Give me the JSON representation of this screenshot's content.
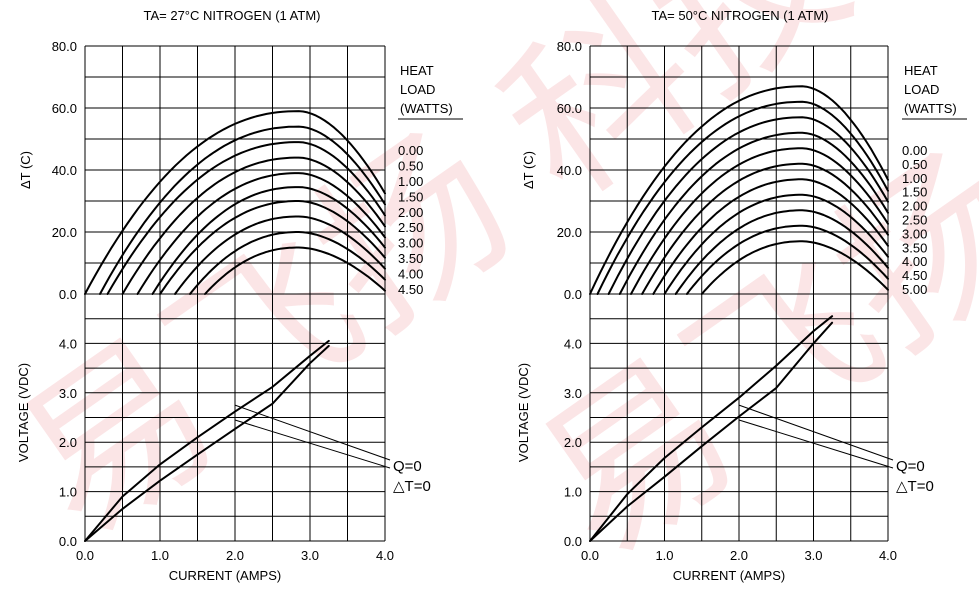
{
  "watermark_text": "易飞扬 科技",
  "chart_data": [
    {
      "type": "line",
      "title": "TA= 27°C NITROGEN (1 ATM)",
      "top": {
        "ylabel": "ΔT (C)",
        "ylim": [
          0,
          80
        ],
        "yticks": [
          "0.0",
          "20.0",
          "40.0",
          "60.0",
          "80.0"
        ],
        "legend_title": [
          "HEAT",
          "LOAD",
          "(WATTS)"
        ],
        "series": [
          {
            "name": "0.00",
            "q": 0.0,
            "peak": 59.0,
            "x0": 0.0
          },
          {
            "name": "0.50",
            "q": 0.5,
            "peak": 54.0,
            "x0": 0.2
          },
          {
            "name": "1.00",
            "q": 1.0,
            "peak": 49.0,
            "x0": 0.3
          },
          {
            "name": "1.50",
            "q": 1.5,
            "peak": 44.0,
            "x0": 0.5
          },
          {
            "name": "2.00",
            "q": 2.0,
            "peak": 39.0,
            "x0": 0.7
          },
          {
            "name": "2.50",
            "q": 2.5,
            "peak": 34.5,
            "x0": 0.9
          },
          {
            "name": "3.00",
            "q": 3.0,
            "peak": 30.0,
            "x0": 1.0
          },
          {
            "name": "3.50",
            "q": 3.5,
            "peak": 25.0,
            "x0": 1.2
          },
          {
            "name": "4.00",
            "q": 4.0,
            "peak": 20.0,
            "x0": 1.4
          },
          {
            "name": "4.50",
            "q": 4.5,
            "peak": 15.0,
            "x0": 1.6
          }
        ]
      },
      "bottom": {
        "ylabel": "VOLTAGE (VDC)",
        "xlabel": "CURRENT (AMPS)",
        "ylim": [
          0,
          5
        ],
        "xlim": [
          0,
          4
        ],
        "xticks": [
          "0.0",
          "1.0",
          "2.0",
          "3.0",
          "4.0"
        ],
        "yticks": [
          "0.0",
          "1.0",
          "2.0",
          "3.0",
          "4.0"
        ],
        "series": [
          {
            "name": "Q=0",
            "x": [
              0,
              0.5,
              1.0,
              1.5,
              2.0,
              2.5,
              3.0,
              3.25
            ],
            "y": [
              0,
              0.65,
              1.22,
              1.75,
              2.27,
              2.78,
              3.6,
              3.95
            ]
          },
          {
            "name": "△T=0",
            "x": [
              0,
              0.5,
              1.0,
              1.5,
              2.0,
              2.5,
              3.0,
              3.25
            ],
            "y": [
              0,
              0.9,
              1.55,
              2.1,
              2.62,
              3.12,
              3.75,
              4.05
            ]
          }
        ],
        "annotations": [
          "Q=0",
          "△T=0"
        ]
      }
    },
    {
      "type": "line",
      "title": "TA= 50°C NITROGEN (1 ATM)",
      "top": {
        "ylabel": "ΔT (C)",
        "ylim": [
          0,
          80
        ],
        "yticks": [
          "0.0",
          "20.0",
          "40.0",
          "60.0",
          "80.0"
        ],
        "legend_title": [
          "HEAT",
          "LOAD",
          "(WATTS)"
        ],
        "series": [
          {
            "name": "0.00",
            "q": 0.0,
            "peak": 67.0,
            "x0": 0.0
          },
          {
            "name": "0.50",
            "q": 0.5,
            "peak": 62.0,
            "x0": 0.1
          },
          {
            "name": "1.00",
            "q": 1.0,
            "peak": 57.0,
            "x0": 0.25
          },
          {
            "name": "1.50",
            "q": 1.5,
            "peak": 52.0,
            "x0": 0.4
          },
          {
            "name": "2.00",
            "q": 2.0,
            "peak": 47.0,
            "x0": 0.55
          },
          {
            "name": "2.50",
            "q": 2.5,
            "peak": 42.0,
            "x0": 0.7
          },
          {
            "name": "3.00",
            "q": 3.0,
            "peak": 37.0,
            "x0": 0.85
          },
          {
            "name": "3.50",
            "q": 3.5,
            "peak": 32.0,
            "x0": 1.0
          },
          {
            "name": "4.00",
            "q": 4.0,
            "peak": 27.0,
            "x0": 1.15
          },
          {
            "name": "4.50",
            "q": 4.5,
            "peak": 22.0,
            "x0": 1.3
          },
          {
            "name": "5.00",
            "q": 5.0,
            "peak": 17.0,
            "x0": 1.5
          }
        ]
      },
      "bottom": {
        "ylabel": "VOLTAGE (VDC)",
        "xlabel": "CURRENT (AMPS)",
        "ylim": [
          0,
          5
        ],
        "xlim": [
          0,
          4
        ],
        "xticks": [
          "0.0",
          "1.0",
          "2.0",
          "3.0",
          "4.0"
        ],
        "yticks": [
          "0.0",
          "1.0",
          "2.0",
          "3.0",
          "4.0"
        ],
        "series": [
          {
            "name": "Q=0",
            "x": [
              0,
              0.5,
              1.0,
              1.5,
              2.0,
              2.5,
              3.0,
              3.25
            ],
            "y": [
              0,
              0.7,
              1.3,
              1.92,
              2.52,
              3.1,
              4.0,
              4.42
            ]
          },
          {
            "name": "△T=0",
            "x": [
              0,
              0.5,
              1.0,
              1.5,
              2.0,
              2.5,
              3.0,
              3.25
            ],
            "y": [
              0,
              0.95,
              1.68,
              2.3,
              2.9,
              3.55,
              4.25,
              4.55
            ]
          }
        ],
        "annotations": [
          "Q=0",
          "△T=0"
        ]
      }
    }
  ]
}
